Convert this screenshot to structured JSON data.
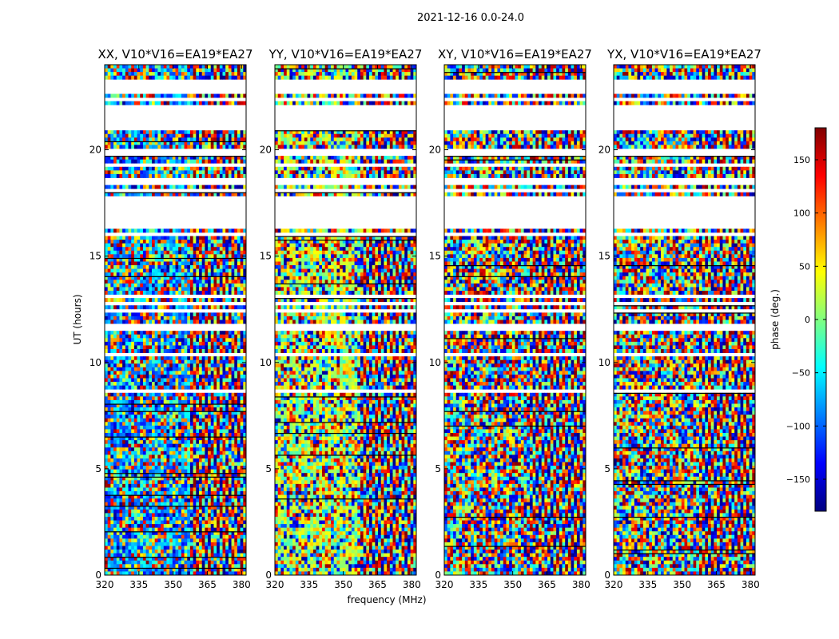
{
  "chart_data": {
    "type": "heatmap",
    "suptitle": "2021-12-16 0.0-24.0",
    "xlabel": "frequency (MHz)",
    "ylabel": "UT (hours)",
    "xlim": [
      320,
      382
    ],
    "ylim": [
      0,
      24
    ],
    "xticks": [
      320,
      335,
      350,
      365,
      380
    ],
    "yticks": [
      0,
      5,
      10,
      15,
      20
    ],
    "panels": [
      {
        "title": "XX, V10*V16=EA19*EA27",
        "polarization": "XX",
        "base_phase_deg": -85
      },
      {
        "title": "YY, V10*V16=EA19*EA27",
        "polarization": "YY",
        "base_phase_deg": 20
      },
      {
        "title": "XY, V10*V16=EA19*EA27",
        "polarization": "XY",
        "base_phase_deg": null
      },
      {
        "title": "YX, V10*V16=EA19*EA27",
        "polarization": "YX",
        "base_phase_deg": null
      }
    ],
    "blank_ut_ranges_hours": [
      [
        23.0,
        23.25
      ],
      [
        22.95,
        22.7
      ],
      [
        22.4,
        22.25
      ],
      [
        22.05,
        21.0
      ],
      [
        20.0,
        19.8
      ],
      [
        19.3,
        19.15
      ],
      [
        18.9,
        18.8
      ],
      [
        18.6,
        18.4
      ],
      [
        18.2,
        17.95
      ],
      [
        17.75,
        16.35
      ],
      [
        16.1,
        16.0
      ],
      [
        13.2,
        13.05
      ],
      [
        12.9,
        12.7
      ],
      [
        12.55,
        12.35
      ],
      [
        11.8,
        11.55
      ],
      [
        10.4,
        10.25
      ],
      [
        8.75,
        8.6
      ],
      [
        8.45,
        8.35
      ],
      [
        3.5,
        3.4
      ],
      [
        0.4,
        0.3
      ]
    ],
    "colorbar": {
      "label": "phase (deg.)",
      "range": [
        -180,
        180
      ],
      "ticks": [
        -150,
        -100,
        -50,
        0,
        50,
        100,
        150
      ],
      "tick_labels": [
        "−150",
        "−100",
        "−50",
        "0",
        "50",
        "100",
        "150"
      ],
      "colormap": "jet",
      "stops": [
        "#000080",
        "#0000ff",
        "#0080ff",
        "#00ffff",
        "#80ff80",
        "#ffff00",
        "#ff8000",
        "#ff0000",
        "#800000"
      ]
    }
  }
}
